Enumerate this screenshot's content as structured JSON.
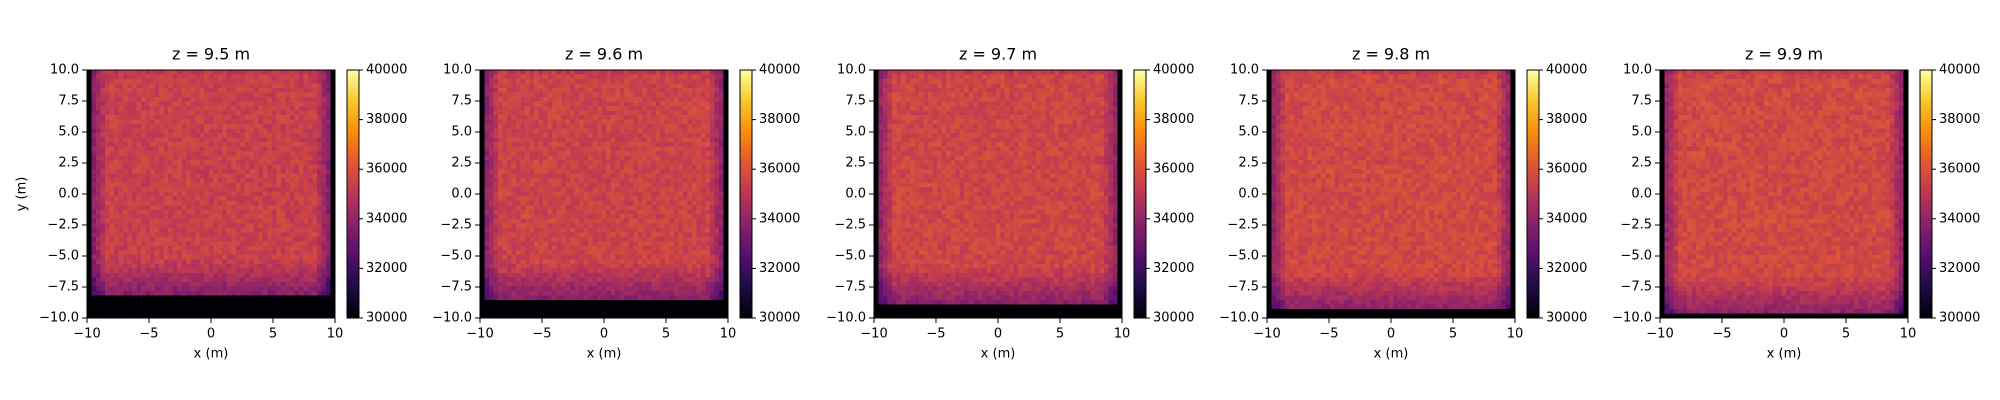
{
  "chart_data": {
    "type": "heatmap",
    "colormap": "inferno",
    "colorbar": {
      "vmin": 30000,
      "vmax": 40000,
      "ticks": [
        30000,
        32000,
        34000,
        36000,
        38000,
        40000
      ],
      "tick_labels": [
        "30000",
        "32000",
        "34000",
        "36000",
        "38000",
        "40000"
      ]
    },
    "xlim": [
      -10,
      10
    ],
    "ylim": [
      -10,
      10
    ],
    "x_ticks": [
      -10,
      -5,
      0,
      5,
      10
    ],
    "x_tick_labels": [
      "−10",
      "−5",
      "0",
      "5",
      "10"
    ],
    "y_ticks": [
      10,
      7.5,
      5,
      2.5,
      0,
      -2.5,
      -5,
      -7.5,
      -10
    ],
    "y_tick_labels": [
      "10.0",
      "7.5",
      "5.0",
      "2.5",
      "0.0",
      "−2.5",
      "−5.0",
      "−7.5",
      "−10.0"
    ],
    "xlabel": "x (m)",
    "ylabel": "y (m)",
    "grid": false,
    "panels": [
      {
        "title": "z = 9.5 m",
        "interior_value": 35400,
        "bottom_dark_band_top": -8.2,
        "side_dark_width": 0.5
      },
      {
        "title": "z = 9.6 m",
        "interior_value": 35500,
        "bottom_dark_band_top": -8.5,
        "side_dark_width": 0.5
      },
      {
        "title": "z = 9.7 m",
        "interior_value": 35600,
        "bottom_dark_band_top": -8.8,
        "side_dark_width": 0.4
      },
      {
        "title": "z = 9.8 m",
        "interior_value": 35700,
        "bottom_dark_band_top": -9.2,
        "side_dark_width": 0.3
      },
      {
        "title": "z = 9.9 m",
        "interior_value": 35700,
        "bottom_dark_band_top": -9.6,
        "side_dark_width": 0.2
      }
    ]
  }
}
